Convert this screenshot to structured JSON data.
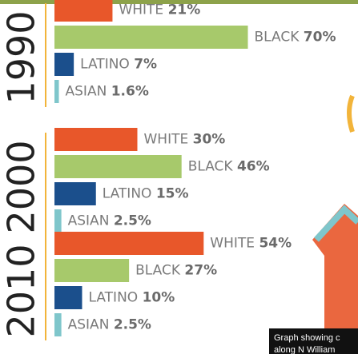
{
  "chart_data": {
    "type": "hbar-groups",
    "categories": [
      "WHITE",
      "BLACK",
      "LATINO",
      "ASIAN"
    ],
    "colors": [
      "#e8572a",
      "#a7c96b",
      "#1b4f8c",
      "#7fc6cb"
    ],
    "xlim": [
      0,
      100
    ],
    "series": [
      {
        "name": "1990",
        "values": [
          21,
          70,
          7,
          1.6
        ],
        "value_labels": [
          "21%",
          "70%",
          "7%",
          "1.6%"
        ]
      },
      {
        "name": "2000",
        "values": [
          30,
          46,
          15,
          2.5
        ],
        "value_labels": [
          "30%",
          "46%",
          "15%",
          "2.5%"
        ]
      },
      {
        "name": "2010",
        "values": [
          54,
          27,
          10,
          2.5
        ],
        "value_labels": [
          "54%",
          "27%",
          "10%",
          "2.5%"
        ]
      }
    ],
    "caption": [
      "Graph showing c",
      "along N William"
    ]
  }
}
